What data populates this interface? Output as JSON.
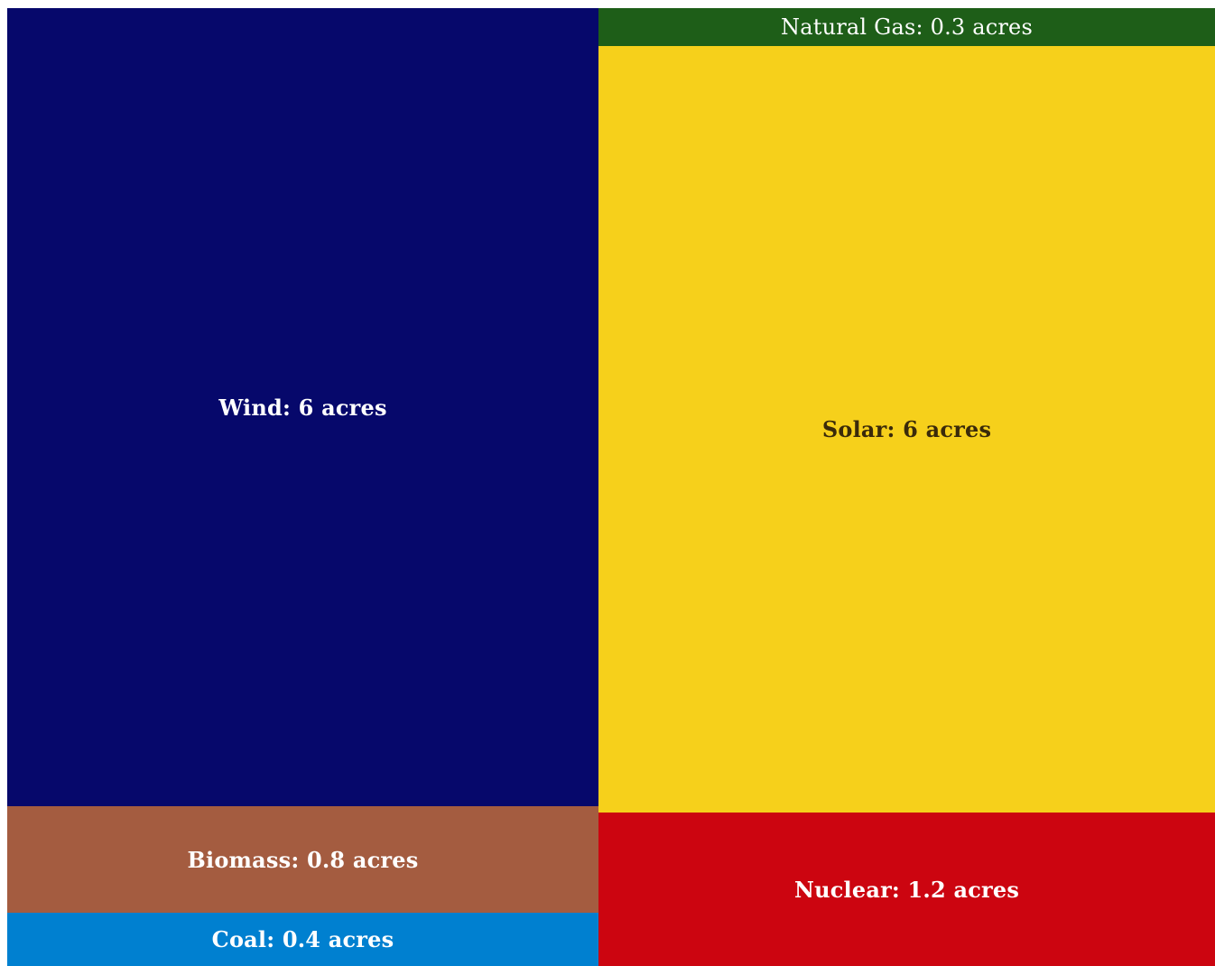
{
  "chart_data": {
    "type": "treemap",
    "unit": "acres",
    "items": [
      {
        "name": "Wind",
        "value": 6,
        "label": "Wind: 6 acres",
        "color": "#06086b",
        "text_color": "#ffffff",
        "bold": true
      },
      {
        "name": "Biomass",
        "value": 0.8,
        "label": "Biomass: 0.8 acres",
        "color": "#a45c40",
        "text_color": "#ffffff",
        "bold": true
      },
      {
        "name": "Coal",
        "value": 0.4,
        "label": "Coal: 0.4 acres",
        "color": "#0080d0",
        "text_color": "#ffffff",
        "bold": true
      },
      {
        "name": "Natural Gas",
        "value": 0.3,
        "label": "Natural Gas: 0.3 acres",
        "color": "#1e5e18",
        "text_color": "#ffffff",
        "bold": false
      },
      {
        "name": "Solar",
        "value": 6,
        "label": "Solar: 6 acres",
        "color": "#f6d01b",
        "text_color": "#3a2a0a",
        "bold": true
      },
      {
        "name": "Nuclear",
        "value": 1.2,
        "label": "Nuclear: 1.2 acres",
        "color": "#cc0510",
        "text_color": "#ffffff",
        "bold": true
      }
    ]
  }
}
